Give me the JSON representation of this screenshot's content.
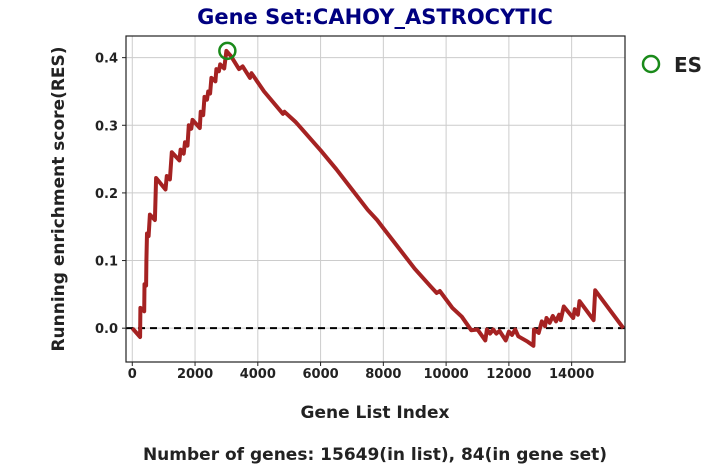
{
  "chart_data": {
    "type": "line",
    "title": "Gene Set:CAHOY_ASTROCYTIC",
    "xlabel": "Gene List Index",
    "ylabel": "Running enrichment score(RES)",
    "footer": "Number of genes: 15649(in list), 84(in gene set)",
    "xlim": [
      -200,
      15700
    ],
    "ylim": [
      -0.05,
      0.432
    ],
    "xticks": [
      0,
      2000,
      4000,
      6000,
      8000,
      10000,
      12000,
      14000
    ],
    "yticks": [
      0.0,
      0.1,
      0.2,
      0.3,
      0.4
    ],
    "ytick_labels": [
      "0.0",
      "0.1",
      "0.2",
      "0.3",
      "0.4"
    ],
    "grid": true,
    "legend": {
      "position": "right-top",
      "entries": [
        "ES"
      ]
    },
    "colors": {
      "line": "#a52222",
      "es_marker": "#1a8a1a",
      "title": "#000080",
      "grid": "#cccccc"
    },
    "baseline": {
      "y": 0.0,
      "style": "dashed"
    },
    "es_point": {
      "x": 3030,
      "y": 0.41
    },
    "series": [
      {
        "points": [
          [
            0,
            0.0
          ],
          [
            250,
            -0.013
          ],
          [
            260,
            0.03
          ],
          [
            380,
            0.025
          ],
          [
            390,
            0.065
          ],
          [
            440,
            0.063
          ],
          [
            450,
            0.1
          ],
          [
            470,
            0.14
          ],
          [
            520,
            0.136
          ],
          [
            560,
            0.168
          ],
          [
            720,
            0.16
          ],
          [
            760,
            0.222
          ],
          [
            1060,
            0.205
          ],
          [
            1100,
            0.225
          ],
          [
            1200,
            0.22
          ],
          [
            1260,
            0.26
          ],
          [
            1500,
            0.248
          ],
          [
            1540,
            0.264
          ],
          [
            1640,
            0.258
          ],
          [
            1680,
            0.275
          ],
          [
            1760,
            0.27
          ],
          [
            1800,
            0.3
          ],
          [
            1880,
            0.295
          ],
          [
            1920,
            0.308
          ],
          [
            2150,
            0.296
          ],
          [
            2180,
            0.32
          ],
          [
            2260,
            0.315
          ],
          [
            2300,
            0.342
          ],
          [
            2380,
            0.338
          ],
          [
            2420,
            0.35
          ],
          [
            2480,
            0.347
          ],
          [
            2520,
            0.37
          ],
          [
            2650,
            0.365
          ],
          [
            2680,
            0.383
          ],
          [
            2760,
            0.38
          ],
          [
            2800,
            0.39
          ],
          [
            2930,
            0.384
          ],
          [
            3000,
            0.41
          ],
          [
            3150,
            0.402
          ],
          [
            3400,
            0.383
          ],
          [
            3520,
            0.387
          ],
          [
            3750,
            0.37
          ],
          [
            3800,
            0.377
          ],
          [
            4200,
            0.35
          ],
          [
            4800,
            0.317
          ],
          [
            4850,
            0.32
          ],
          [
            5200,
            0.305
          ],
          [
            5300,
            0.3
          ],
          [
            6000,
            0.263
          ],
          [
            6500,
            0.235
          ],
          [
            7000,
            0.205
          ],
          [
            7500,
            0.175
          ],
          [
            7800,
            0.16
          ],
          [
            8000,
            0.148
          ],
          [
            8500,
            0.118
          ],
          [
            9000,
            0.088
          ],
          [
            9500,
            0.062
          ],
          [
            9700,
            0.052
          ],
          [
            9800,
            0.055
          ],
          [
            10200,
            0.03
          ],
          [
            10500,
            0.017
          ],
          [
            10800,
            -0.003
          ],
          [
            11000,
            -0.002
          ],
          [
            11250,
            -0.018
          ],
          [
            11300,
            -0.002
          ],
          [
            11400,
            -0.008
          ],
          [
            11500,
            -0.002
          ],
          [
            11600,
            -0.008
          ],
          [
            11700,
            -0.004
          ],
          [
            11900,
            -0.018
          ],
          [
            12000,
            -0.005
          ],
          [
            12100,
            -0.01
          ],
          [
            12200,
            -0.002
          ],
          [
            12300,
            -0.012
          ],
          [
            12600,
            -0.02
          ],
          [
            12780,
            -0.026
          ],
          [
            12800,
            -0.002
          ],
          [
            12950,
            -0.007
          ],
          [
            13050,
            0.01
          ],
          [
            13150,
            0.003
          ],
          [
            13200,
            0.015
          ],
          [
            13300,
            0.008
          ],
          [
            13400,
            0.018
          ],
          [
            13500,
            0.01
          ],
          [
            13600,
            0.02
          ],
          [
            13650,
            0.012
          ],
          [
            13750,
            0.032
          ],
          [
            14050,
            0.015
          ],
          [
            14100,
            0.028
          ],
          [
            14200,
            0.02
          ],
          [
            14250,
            0.04
          ],
          [
            14700,
            0.012
          ],
          [
            14750,
            0.056
          ],
          [
            15649,
            0.0
          ]
        ]
      }
    ]
  }
}
